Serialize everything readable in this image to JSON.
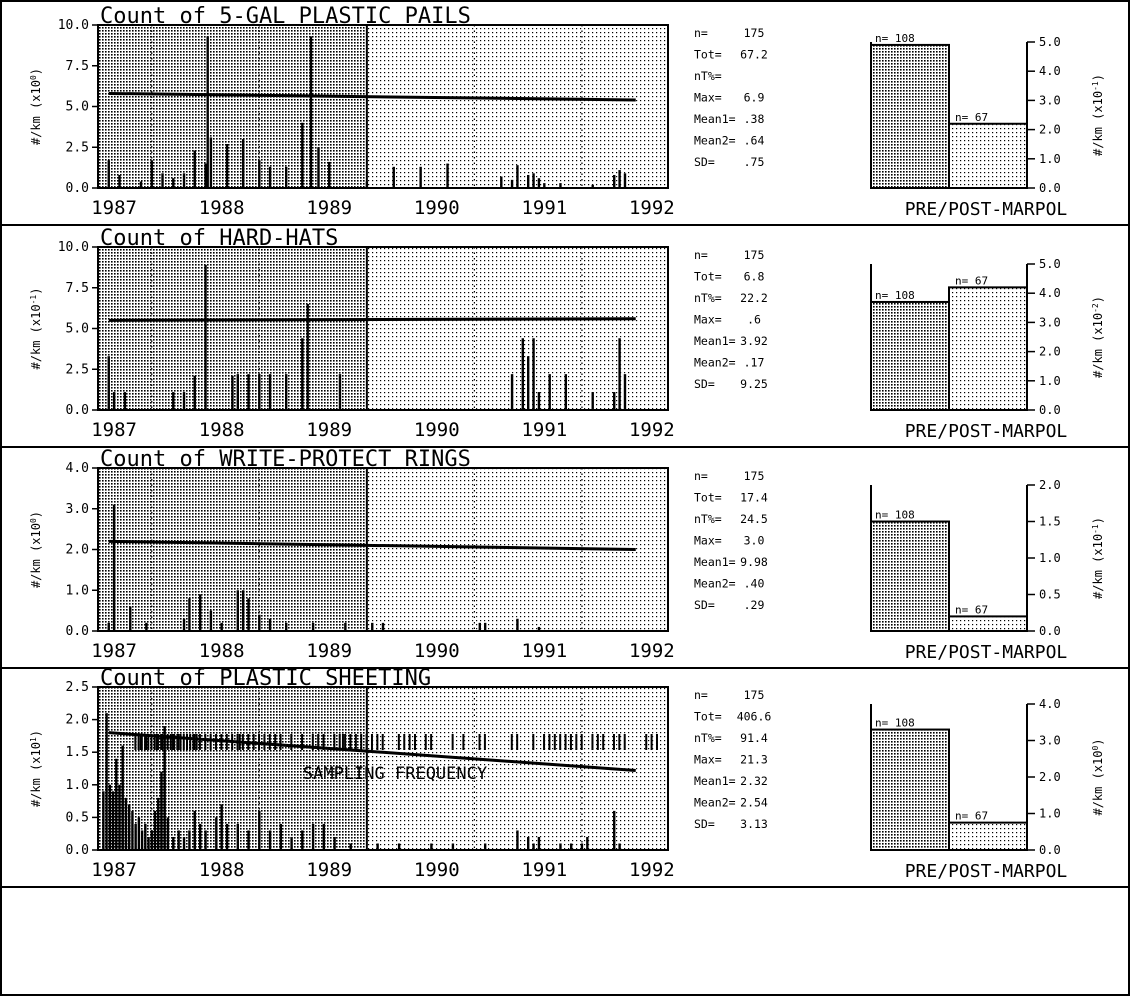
{
  "colors": {
    "ink": "#000000",
    "pre_shade": "#b4b4b4",
    "post_shade": "#dedede",
    "background": "#ffffff"
  },
  "x_axis": {
    "years": [
      "1987",
      "1988",
      "1989",
      "1990",
      "1991",
      "1992"
    ],
    "marpol_divider": "1989.5"
  },
  "stats_labels": {
    "n": "n=",
    "tot": "Tot=",
    "nt": "nT%=",
    "max": "Max=",
    "mean1": "Mean1=",
    "mean2": "Mean2=",
    "sd": "SD="
  },
  "bar_caption": "PRE/POST-MARPOL",
  "sampling": {
    "label": "SAMPLING FREQUENCY"
  },
  "chart_data": [
    {
      "type": "bar",
      "title": "Count of   5-GAL PLASTIC PAILS",
      "ylabel": "#/km  (x10^0)",
      "yticks": [
        "0.0",
        "2.5",
        "5.0",
        "7.5",
        "10.0"
      ],
      "ylim": [
        0,
        10
      ],
      "trend": [
        5.8,
        5.4
      ],
      "spikes": [
        [
          1987.1,
          1.7
        ],
        [
          1987.2,
          0.8
        ],
        [
          1987.4,
          0.4
        ],
        [
          1987.5,
          1.7
        ],
        [
          1987.6,
          0.9
        ],
        [
          1987.7,
          0.6
        ],
        [
          1987.8,
          0.9
        ],
        [
          1987.9,
          2.3
        ],
        [
          1988.0,
          1.5
        ],
        [
          1988.02,
          9.3
        ],
        [
          1988.05,
          3.1
        ],
        [
          1988.2,
          2.7
        ],
        [
          1988.35,
          3.0
        ],
        [
          1988.5,
          1.7
        ],
        [
          1988.6,
          1.3
        ],
        [
          1988.75,
          1.3
        ],
        [
          1988.9,
          4.0
        ],
        [
          1988.98,
          9.3
        ],
        [
          1989.05,
          2.5
        ],
        [
          1989.15,
          1.6
        ],
        [
          1989.5,
          0.4
        ],
        [
          1989.75,
          1.3
        ],
        [
          1990.0,
          1.3
        ],
        [
          1990.25,
          1.5
        ],
        [
          1990.75,
          0.7
        ],
        [
          1990.85,
          0.5
        ],
        [
          1990.9,
          1.4
        ],
        [
          1991.0,
          0.8
        ],
        [
          1991.05,
          0.9
        ],
        [
          1991.1,
          0.6
        ],
        [
          1991.15,
          0.3
        ],
        [
          1991.3,
          0.3
        ],
        [
          1991.6,
          0.2
        ],
        [
          1991.8,
          0.8
        ],
        [
          1991.85,
          1.1
        ],
        [
          1991.9,
          0.9
        ]
      ],
      "stats": {
        "n": "175",
        "tot": "67.2",
        "nt": "",
        "max": "6.9",
        "mean1": ".38",
        "mean2": ".64",
        "sd": ".75"
      },
      "summary": {
        "yticks": [
          "0.0",
          "1.0",
          "2.0",
          "3.0",
          "4.0",
          "5.0"
        ],
        "ylim": [
          0,
          5
        ],
        "ylabel": "#/km  (x10^-1)",
        "pre_n": "n= 108",
        "pre": 4.9,
        "post_n": "n= 67",
        "post": 2.2
      }
    },
    {
      "type": "bar",
      "title": "Count of   HARD-HATS",
      "ylabel": "#/km  (x10^-1)",
      "yticks": [
        "0.0",
        "2.5",
        "5.0",
        "7.5",
        "10.0"
      ],
      "ylim": [
        0,
        10
      ],
      "trend": [
        5.5,
        5.6
      ],
      "spikes": [
        [
          1987.1,
          3.3
        ],
        [
          1987.15,
          1.1
        ],
        [
          1987.25,
          1.1
        ],
        [
          1987.7,
          1.1
        ],
        [
          1987.8,
          1.1
        ],
        [
          1987.9,
          2.1
        ],
        [
          1988.0,
          8.9
        ],
        [
          1988.25,
          2.1
        ],
        [
          1988.3,
          2.2
        ],
        [
          1988.4,
          2.2
        ],
        [
          1988.5,
          2.2
        ],
        [
          1988.6,
          2.2
        ],
        [
          1988.75,
          2.2
        ],
        [
          1988.9,
          4.4
        ],
        [
          1988.95,
          6.5
        ],
        [
          1989.25,
          2.2
        ],
        [
          1990.85,
          2.2
        ],
        [
          1990.95,
          4.4
        ],
        [
          1991.0,
          3.3
        ],
        [
          1991.05,
          4.4
        ],
        [
          1991.1,
          1.1
        ],
        [
          1991.2,
          2.2
        ],
        [
          1991.35,
          2.2
        ],
        [
          1991.6,
          1.1
        ],
        [
          1991.8,
          1.1
        ],
        [
          1991.85,
          4.4
        ],
        [
          1991.9,
          2.2
        ]
      ],
      "stats": {
        "n": "175",
        "tot": "6.8",
        "nt": "22.2",
        "max": ".6",
        "mean1": "3.92",
        "mean2": ".17",
        "sd": "9.25"
      },
      "summary": {
        "yticks": [
          "0.0",
          "1.0",
          "2.0",
          "3.0",
          "4.0",
          "5.0"
        ],
        "ylim": [
          0,
          5
        ],
        "ylabel": "#/km  (x10^-2)",
        "pre_n": "n= 108",
        "pre": 3.7,
        "post_n": "n= 67",
        "post": 4.2
      }
    },
    {
      "type": "bar",
      "title": "Count of   WRITE-PROTECT RINGS",
      "ylabel": "#/km  (x10^0)",
      "yticks": [
        "0.0",
        "1.0",
        "2.0",
        "3.0",
        "4.0"
      ],
      "ylim": [
        0,
        4
      ],
      "trend": [
        2.2,
        2.0
      ],
      "spikes": [
        [
          1987.1,
          0.2
        ],
        [
          1987.15,
          3.1
        ],
        [
          1987.3,
          0.6
        ],
        [
          1987.45,
          0.2
        ],
        [
          1987.8,
          0.3
        ],
        [
          1987.85,
          0.8
        ],
        [
          1987.95,
          0.9
        ],
        [
          1988.05,
          0.5
        ],
        [
          1988.15,
          0.2
        ],
        [
          1988.3,
          1.0
        ],
        [
          1988.35,
          1.0
        ],
        [
          1988.4,
          0.8
        ],
        [
          1988.5,
          0.4
        ],
        [
          1988.6,
          0.3
        ],
        [
          1988.75,
          0.2
        ],
        [
          1989.0,
          0.2
        ],
        [
          1989.3,
          0.2
        ],
        [
          1989.55,
          0.2
        ],
        [
          1989.65,
          0.2
        ],
        [
          1990.55,
          0.2
        ],
        [
          1990.6,
          0.2
        ],
        [
          1990.9,
          0.3
        ],
        [
          1991.1,
          0.1
        ]
      ],
      "stats": {
        "n": "175",
        "tot": "17.4",
        "nt": "24.5",
        "max": "3.0",
        "mean1": "9.98",
        "mean2": ".40",
        "sd": ".29"
      },
      "summary": {
        "yticks": [
          "0.0",
          "0.5",
          "1.0",
          "1.5",
          "2.0"
        ],
        "ylim": [
          0,
          2
        ],
        "ylabel": "#/km  (x10^-1)",
        "pre_n": "n= 108",
        "pre": 1.5,
        "post_n": "n= 67",
        "post": 0.2
      }
    },
    {
      "type": "bar",
      "title": "Count of   PLASTIC SHEETING",
      "ylabel": "#/km  (x10^1)",
      "yticks": [
        "0.0",
        "0.5",
        "1.0",
        "1.5",
        "2.0",
        "2.5"
      ],
      "ylim": [
        0,
        2.5
      ],
      "trend": [
        1.8,
        1.22
      ],
      "spikes": [
        [
          1987.05,
          0.9
        ],
        [
          1987.08,
          2.1
        ],
        [
          1987.11,
          1.0
        ],
        [
          1987.14,
          0.9
        ],
        [
          1987.17,
          1.4
        ],
        [
          1987.2,
          1.0
        ],
        [
          1987.23,
          1.6
        ],
        [
          1987.26,
          0.8
        ],
        [
          1987.29,
          0.7
        ],
        [
          1987.32,
          0.6
        ],
        [
          1987.35,
          0.4
        ],
        [
          1987.38,
          0.5
        ],
        [
          1987.41,
          0.3
        ],
        [
          1987.44,
          0.4
        ],
        [
          1987.47,
          0.2
        ],
        [
          1987.5,
          0.3
        ],
        [
          1987.53,
          0.6
        ],
        [
          1987.56,
          0.8
        ],
        [
          1987.59,
          1.2
        ],
        [
          1987.62,
          1.9
        ],
        [
          1987.65,
          0.5
        ],
        [
          1987.7,
          0.2
        ],
        [
          1987.75,
          0.3
        ],
        [
          1987.8,
          0.2
        ],
        [
          1987.85,
          0.3
        ],
        [
          1987.9,
          0.6
        ],
        [
          1987.95,
          0.4
        ],
        [
          1988.0,
          0.3
        ],
        [
          1988.1,
          0.5
        ],
        [
          1988.15,
          0.7
        ],
        [
          1988.2,
          0.4
        ],
        [
          1988.3,
          0.4
        ],
        [
          1988.4,
          0.3
        ],
        [
          1988.5,
          0.6
        ],
        [
          1988.6,
          0.3
        ],
        [
          1988.7,
          0.4
        ],
        [
          1988.8,
          0.2
        ],
        [
          1988.9,
          0.3
        ],
        [
          1989.0,
          0.4
        ],
        [
          1989.1,
          0.4
        ],
        [
          1989.2,
          0.2
        ],
        [
          1989.35,
          0.1
        ],
        [
          1989.6,
          0.1
        ],
        [
          1989.8,
          0.1
        ],
        [
          1990.1,
          0.1
        ],
        [
          1990.3,
          0.1
        ],
        [
          1990.6,
          0.1
        ],
        [
          1990.9,
          0.3
        ],
        [
          1991.0,
          0.2
        ],
        [
          1991.05,
          0.1
        ],
        [
          1991.1,
          0.2
        ],
        [
          1991.3,
          0.1
        ],
        [
          1991.4,
          0.1
        ],
        [
          1991.5,
          0.1
        ],
        [
          1991.55,
          0.2
        ],
        [
          1991.8,
          0.6
        ],
        [
          1991.85,
          0.1
        ]
      ],
      "stats": {
        "n": "175",
        "tot": "406.6",
        "nt": "91.4",
        "max": "21.3",
        "mean1": "2.32",
        "mean2": "2.54",
        "sd": "3.13"
      },
      "summary": {
        "yticks": [
          "0.0",
          "1.0",
          "2.0",
          "3.0",
          "4.0"
        ],
        "ylim": [
          0,
          4
        ],
        "ylabel": "#/km  (x10^0)",
        "pre_n": "n= 108",
        "pre": 3.3,
        "post_n": "n= 67",
        "post": 0.75
      }
    }
  ]
}
